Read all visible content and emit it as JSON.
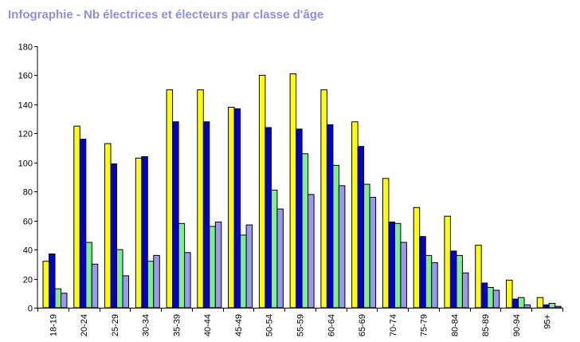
{
  "title": "Infographie - Nb électrices et électeurs par classe d'âge",
  "chart_data": {
    "type": "bar",
    "title": "Infographie - Nb électrices et électeurs par classe d'âge",
    "xlabel": "",
    "ylabel": "",
    "ylim": [
      0,
      180
    ],
    "yticks": [
      0,
      20,
      40,
      60,
      80,
      100,
      120,
      140,
      160,
      180
    ],
    "grid": false,
    "legend": false,
    "categories": [
      "18-19",
      "20-24",
      "25-29",
      "30-34",
      "35-39",
      "40-44",
      "45-49",
      "50-54",
      "55-59",
      "60-64",
      "65-69",
      "70-74",
      "75-79",
      "80-84",
      "85-89",
      "90-94",
      "95+"
    ],
    "series": [
      {
        "color": "#ffff00",
        "values": [
          32,
          125,
          113,
          103,
          150,
          150,
          138,
          160,
          161,
          150,
          128,
          89,
          69,
          63,
          43,
          19,
          7
        ]
      },
      {
        "color": "#0000cc",
        "values": [
          37,
          116,
          99,
          104,
          128,
          128,
          137,
          124,
          123,
          126,
          111,
          59,
          49,
          39,
          17,
          6,
          2
        ]
      },
      {
        "color": "#80ee90",
        "values": [
          13,
          45,
          40,
          32,
          58,
          56,
          50,
          81,
          106,
          98,
          85,
          58,
          36,
          36,
          14,
          7,
          3
        ]
      },
      {
        "color": "#9999ee",
        "values": [
          10,
          30,
          22,
          36,
          38,
          59,
          57,
          68,
          78,
          84,
          76,
          45,
          31,
          24,
          12,
          2,
          1
        ]
      }
    ]
  }
}
